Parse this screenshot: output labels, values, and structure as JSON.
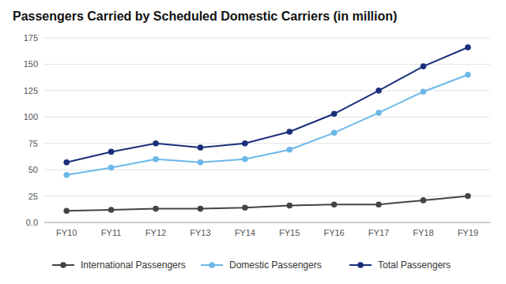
{
  "chart_data": {
    "type": "line",
    "title": "Passengers Carried by Scheduled Domestic Carriers (in million)",
    "categories": [
      "FY10",
      "FY11",
      "FY12",
      "FY13",
      "FY14",
      "FY15",
      "FY16",
      "FY17",
      "FY18",
      "FY19"
    ],
    "series": [
      {
        "name": "International Passengers",
        "color": "#444444",
        "values": [
          11,
          12,
          13,
          13,
          14,
          16,
          17,
          17,
          21,
          25
        ]
      },
      {
        "name": "Domestic Passengers",
        "color": "#6bb8e8",
        "values": [
          45,
          52,
          60,
          57,
          60,
          69,
          85,
          104,
          124,
          140
        ]
      },
      {
        "name": "Total Passengers",
        "color": "#1a2f7a",
        "values": [
          57,
          67,
          75,
          71,
          75,
          86,
          103,
          125,
          148,
          166
        ]
      }
    ],
    "ylim": [
      0,
      175
    ],
    "yticks": [
      {
        "value": 0,
        "label": "0.0"
      },
      25,
      50,
      75,
      100,
      125,
      150,
      175
    ],
    "grid": true,
    "legend": "bottom",
    "marker": "circle"
  }
}
